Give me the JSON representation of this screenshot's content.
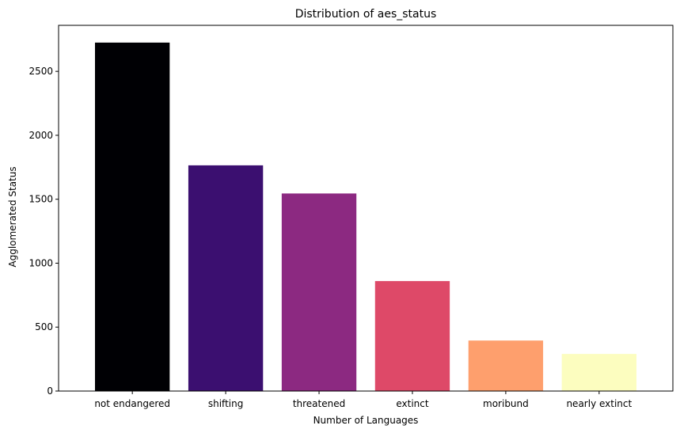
{
  "chart_data": {
    "type": "bar",
    "title": "Distribution of aes_status",
    "xlabel": "Number of Languages",
    "ylabel": "Agglomerated Status",
    "categories": [
      "not endangered",
      "shifting",
      "threatened",
      "extinct",
      "moribund",
      "nearly extinct"
    ],
    "values": [
      2725,
      1765,
      1545,
      860,
      395,
      290
    ],
    "colors": [
      "#000004",
      "#3b0f70",
      "#8c2981",
      "#de4968",
      "#fe9f6d",
      "#fcfdbf"
    ],
    "ylim": [
      0,
      2860
    ],
    "yticks": [
      0,
      500,
      1000,
      1500,
      2000,
      2500
    ],
    "grid": false,
    "legend": "none"
  }
}
